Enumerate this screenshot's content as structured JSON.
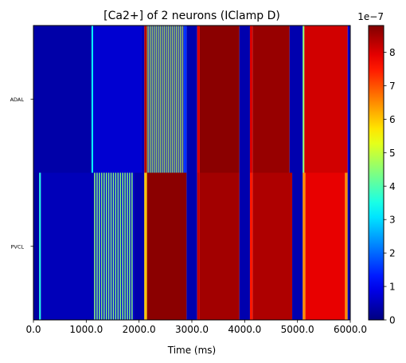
{
  "chart_data": {
    "type": "heatmap",
    "title": "[Ca2+] of 2 neurons (IClamp D)",
    "xlabel": "Time (ms)",
    "ylabel": "",
    "xlim": [
      0,
      6000
    ],
    "x_ticks": [
      0,
      1000,
      2000,
      3000,
      4000,
      5000,
      6000
    ],
    "x_tick_labels": [
      "0.0",
      "1000.0",
      "2000.0",
      "3000.0",
      "4000.0",
      "5000.0",
      "6000.0"
    ],
    "rows": [
      {
        "label": "ADAL",
        "segments": [
          {
            "start": 0,
            "end": 1100,
            "value": 0.35
          },
          {
            "start": 1100,
            "end": 1130,
            "value": 3.3
          },
          {
            "start": 1130,
            "end": 2050,
            "value": 0.7
          },
          {
            "start": 2050,
            "end": 2100,
            "value": 0.5
          },
          {
            "start": 2100,
            "end": 2150,
            "value": 8.3
          },
          {
            "start": 2150,
            "end": 2850,
            "value": 5.0,
            "pattern": "spikes",
            "count": 28
          },
          {
            "start": 2850,
            "end": 2900,
            "value": 1.5
          },
          {
            "start": 2900,
            "end": 3100,
            "value": 0.4
          },
          {
            "start": 3100,
            "end": 3150,
            "value": 8.0
          },
          {
            "start": 3150,
            "end": 3900,
            "value": 8.7
          },
          {
            "start": 3900,
            "end": 4100,
            "value": 0.4
          },
          {
            "start": 4100,
            "end": 4150,
            "value": 8.0
          },
          {
            "start": 4150,
            "end": 4850,
            "value": 8.6
          },
          {
            "start": 4850,
            "end": 5100,
            "value": 0.4
          },
          {
            "start": 5100,
            "end": 5130,
            "value": 4.5
          },
          {
            "start": 5130,
            "end": 5950,
            "value": 8.1
          },
          {
            "start": 5950,
            "end": 6000,
            "value": 0.7
          }
        ]
      },
      {
        "label": "PVCL",
        "segments": [
          {
            "start": 0,
            "end": 110,
            "value": 0.3
          },
          {
            "start": 110,
            "end": 140,
            "value": 3.5
          },
          {
            "start": 140,
            "end": 1150,
            "value": 0.5
          },
          {
            "start": 1150,
            "end": 1900,
            "value": 4.5,
            "pattern": "spikes",
            "count": 17
          },
          {
            "start": 1900,
            "end": 2100,
            "value": 0.4
          },
          {
            "start": 2100,
            "end": 2150,
            "value": 6.0
          },
          {
            "start": 2150,
            "end": 2900,
            "value": 8.7
          },
          {
            "start": 2900,
            "end": 3100,
            "value": 0.4
          },
          {
            "start": 3100,
            "end": 3150,
            "value": 8.2
          },
          {
            "start": 3150,
            "end": 3900,
            "value": 8.5
          },
          {
            "start": 3900,
            "end": 4100,
            "value": 0.4
          },
          {
            "start": 4100,
            "end": 4150,
            "value": 7.5
          },
          {
            "start": 4150,
            "end": 4900,
            "value": 8.4
          },
          {
            "start": 4900,
            "end": 5100,
            "value": 0.4
          },
          {
            "start": 5100,
            "end": 5150,
            "value": 6.5
          },
          {
            "start": 5150,
            "end": 5900,
            "value": 7.9
          },
          {
            "start": 5900,
            "end": 5950,
            "value": 6.5
          },
          {
            "start": 5950,
            "end": 6000,
            "value": 0.5
          }
        ]
      }
    ],
    "colorbar": {
      "colormap": "jet",
      "range": [
        0,
        8.8
      ],
      "ticks": [
        0,
        1,
        2,
        3,
        4,
        5,
        6,
        7,
        8
      ],
      "tick_labels": [
        "0",
        "1",
        "2",
        "3",
        "4",
        "5",
        "6",
        "7",
        "8"
      ],
      "scale_label": "1e−7"
    }
  }
}
